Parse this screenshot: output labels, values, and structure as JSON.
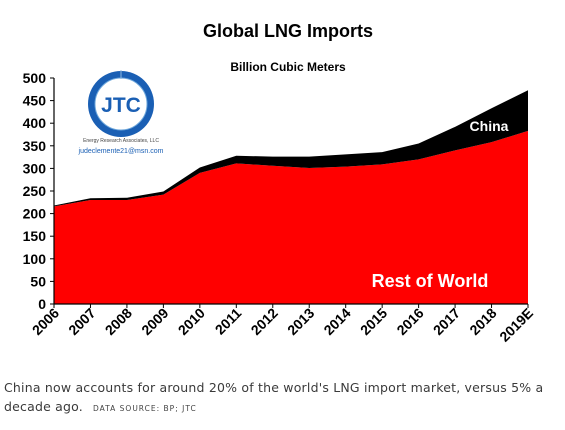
{
  "chart_data": {
    "type": "area",
    "title": "Global LNG Imports",
    "subtitle": "Billion Cubic Meters",
    "categories": [
      "2006",
      "2007",
      "2008",
      "2009",
      "2010",
      "2011",
      "2012",
      "2013",
      "2014",
      "2015",
      "2016",
      "2017",
      "2018",
      "2019E"
    ],
    "stacked": true,
    "series": [
      {
        "name": "Rest of World",
        "color": "#ff0000",
        "values": [
          216,
          230,
          230,
          242,
          290,
          311,
          306,
          301,
          304,
          309,
          320,
          340,
          358,
          383
        ]
      },
      {
        "name": "China",
        "color": "#000000",
        "values": [
          2,
          4,
          5,
          7,
          12,
          17,
          20,
          25,
          27,
          27,
          35,
          52,
          75,
          90
        ]
      }
    ],
    "ylim": [
      0,
      500
    ],
    "yticks": [
      0,
      50,
      100,
      150,
      200,
      250,
      300,
      350,
      400,
      450,
      500
    ],
    "grid": false,
    "legend": "inline labels"
  },
  "logo": {
    "initials": "JTC",
    "company": "Energy Research Associates, LLC",
    "email": "judeclemente21@msn.com",
    "ring_color": "#1a5fb4"
  },
  "caption": {
    "text": "China now accounts for around 20% of the world's LNG import market, versus 5% a decade ago.",
    "source": "DATA SOURCE: BP; JTC"
  }
}
